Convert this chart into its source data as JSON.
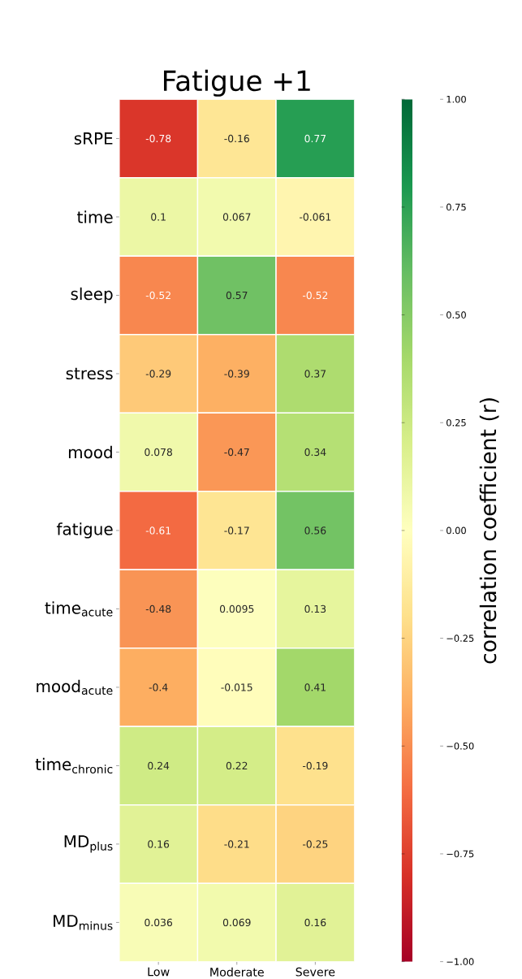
{
  "chart_data": {
    "type": "heatmap",
    "title": "Fatigue +1",
    "clabel": "correlation coefficient (r)",
    "categories": [
      "Low",
      "Moderate",
      "Severe"
    ],
    "y_categories": [
      "sRPE",
      "time",
      "sleep",
      "stress",
      "mood",
      "fatigue",
      "time$_{acute}$",
      "mood$_{acute}$",
      "time$_{chronic}$",
      "MD$_{plus}$",
      "MD$_{minus}$"
    ],
    "cells": [
      [
        -0.78,
        -0.16,
        0.77
      ],
      [
        0.1,
        0.067,
        -0.061
      ],
      [
        -0.52,
        0.57,
        -0.52
      ],
      [
        -0.29,
        -0.39,
        0.37
      ],
      [
        0.078,
        -0.47,
        0.34
      ],
      [
        -0.61,
        -0.17,
        0.56
      ],
      [
        -0.48,
        0.0095,
        0.13
      ],
      [
        -0.4,
        -0.015,
        0.41
      ],
      [
        0.24,
        0.22,
        -0.19
      ],
      [
        0.16,
        -0.21,
        -0.25
      ],
      [
        0.036,
        0.069,
        0.16
      ]
    ],
    "data_labels": true,
    "clim": [
      -1,
      1
    ],
    "cticks": [
      {
        "value": -1,
        "label": "−1.00"
      },
      {
        "value": -0.75,
        "label": "−0.75"
      },
      {
        "value": -0.5,
        "label": "−0.50"
      },
      {
        "value": -0.25,
        "label": "−0.25"
      },
      {
        "value": 0,
        "label": "0.00"
      },
      {
        "value": 0.25,
        "label": "0.25"
      },
      {
        "value": 0.5,
        "label": "0.50"
      },
      {
        "value": 0.75,
        "label": "0.75"
      },
      {
        "value": 1,
        "label": "1.00"
      }
    ]
  }
}
